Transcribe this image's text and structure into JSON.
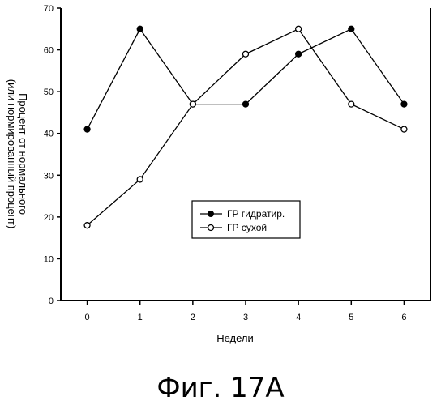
{
  "caption": "Фиг. 17А",
  "chart_data": {
    "type": "line",
    "x": [
      0,
      1,
      2,
      3,
      4,
      5,
      6
    ],
    "xlabel": "Недели",
    "ylabel_lines": [
      "Процент от нормального",
      "(или нормированный процент)"
    ],
    "xlim": [
      -0.5,
      6.5
    ],
    "ylim": [
      0,
      70
    ],
    "yticks": [
      0,
      10,
      20,
      30,
      40,
      50,
      60,
      70
    ],
    "grid": false,
    "legend_position": "center",
    "series": [
      {
        "name": "ГР гидратир.",
        "marker": "filled-circle",
        "values": [
          41,
          65,
          47,
          47,
          59,
          65,
          47
        ]
      },
      {
        "name": "ГР сухой",
        "marker": "open-circle",
        "values": [
          18,
          29,
          47,
          59,
          65,
          47,
          41
        ]
      }
    ]
  }
}
